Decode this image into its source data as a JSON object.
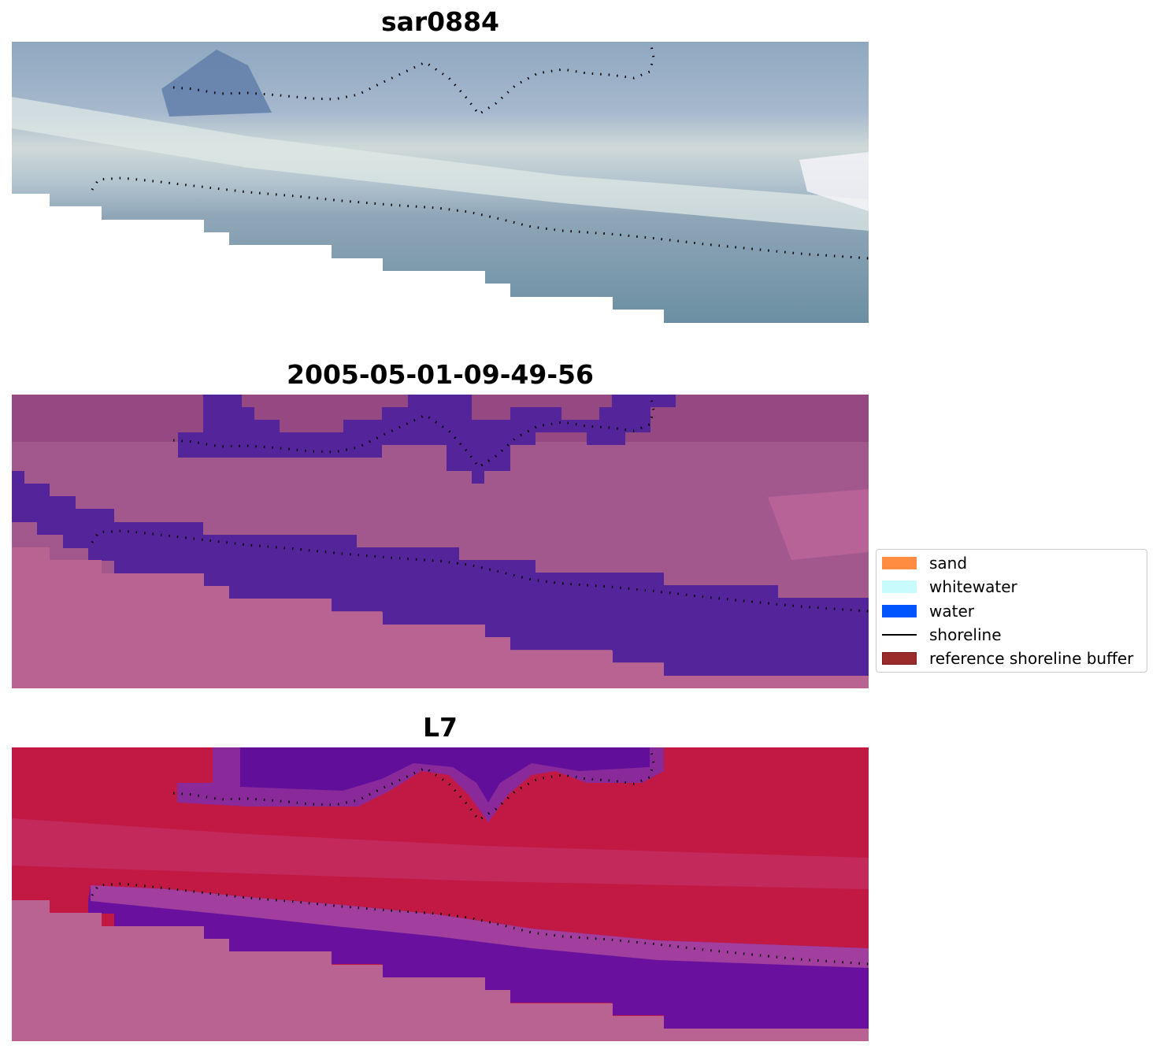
{
  "panels": [
    {
      "title": "sar0884"
    },
    {
      "title": "2005-05-01-09-49-56"
    },
    {
      "title": "L7"
    }
  ],
  "legend": {
    "items": [
      {
        "label": "sand",
        "color": "#ff8c40",
        "kind": "patch"
      },
      {
        "label": "whitewater",
        "color": "#c8fcfc",
        "kind": "patch"
      },
      {
        "label": "water",
        "color": "#0055ff",
        "kind": "patch"
      },
      {
        "label": "shoreline",
        "color": "#000000",
        "kind": "line"
      },
      {
        "label": "reference shoreline buffer",
        "color": "#9b2b2b",
        "kind": "patch"
      }
    ]
  },
  "colors": {
    "rgb_sky": "#9fb3c8",
    "rgb_surf": "#d6e1e0",
    "rgb_sea": "#6f95a8",
    "class_land": "#a2588d",
    "class_water": "#53249a",
    "class_nodata": "#b96393",
    "index_high": "#c21844",
    "index_low": "#5c0b9b",
    "index_nodata": "#b96393",
    "shoreline_points": "#000000"
  }
}
